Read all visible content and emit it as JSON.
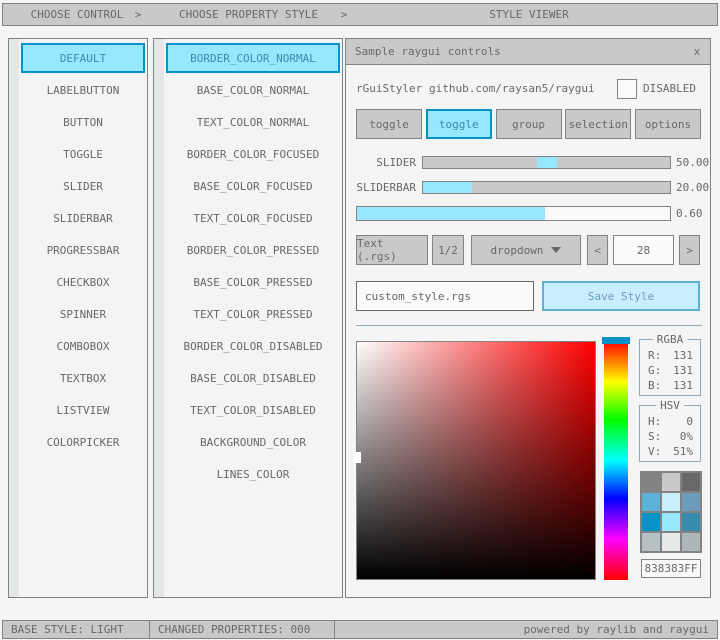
{
  "breadcrumb": {
    "step1": "CHOOSE CONTROL",
    "step2": "CHOOSE PROPERTY STYLE",
    "step3": "STYLE VIEWER",
    "chevron": ">"
  },
  "controls_list": {
    "selected": "DEFAULT",
    "items": [
      "DEFAULT",
      "LABELBUTTON",
      "BUTTON",
      "TOGGLE",
      "SLIDER",
      "SLIDERBAR",
      "PROGRESSBAR",
      "CHECKBOX",
      "SPINNER",
      "COMBOBOX",
      "TEXTBOX",
      "LISTVIEW",
      "COLORPICKER"
    ]
  },
  "properties_list": {
    "selected": "BORDER_COLOR_NORMAL",
    "items": [
      "BORDER_COLOR_NORMAL",
      "BASE_COLOR_NORMAL",
      "TEXT_COLOR_NORMAL",
      "BORDER_COLOR_FOCUSED",
      "BASE_COLOR_FOCUSED",
      "TEXT_COLOR_FOCUSED",
      "BORDER_COLOR_PRESSED",
      "BASE_COLOR_PRESSED",
      "TEXT_COLOR_PRESSED",
      "BORDER_COLOR_DISABLED",
      "BASE_COLOR_DISABLED",
      "TEXT_COLOR_DISABLED",
      "BACKGROUND_COLOR",
      "LINES_COLOR"
    ]
  },
  "window": {
    "title": "Sample raygui controls",
    "close_label": "x",
    "app_name": "rGuiStyler",
    "repo_url": "github.com/raysan5/raygui",
    "disabled_label": "DISABLED",
    "toggles": [
      "toggle",
      "toggle",
      "group",
      "selection",
      "options"
    ],
    "toggles_selected_index": 1,
    "slider": {
      "label": "SLIDER",
      "value": "50.00",
      "percent": 50
    },
    "sliderbar": {
      "label": "SLIDERBAR",
      "value": "20.00",
      "percent": 20
    },
    "progressbar": {
      "value": "0.60",
      "percent": 60
    },
    "controls_row": {
      "text_button": "Text (.rgs)",
      "half_button": "1/2",
      "dropdown_label": "dropdown",
      "spinner_decrease": "<",
      "spinner_value": "28",
      "spinner_increase": ">"
    },
    "file_input": "custom_style.rgs",
    "save_button": "Save Style",
    "color_panel": {
      "rgba": {
        "title": "RGBA",
        "rows": [
          {
            "label": "R:",
            "value": "131"
          },
          {
            "label": "G:",
            "value": "131"
          },
          {
            "label": "B:",
            "value": "131"
          }
        ]
      },
      "hsv": {
        "title": "HSV",
        "rows": [
          {
            "label": "H:",
            "value": "0"
          },
          {
            "label": "S:",
            "value": "0%"
          },
          {
            "label": "V:",
            "value": "51%"
          }
        ]
      },
      "hex_value": "838383FF",
      "swatches": [
        "#838383",
        "#c9c9c9",
        "#686868",
        "#5bb2d9",
        "#c9effe",
        "#6c9bbc",
        "#0492c7",
        "#97e8ff",
        "#368baf",
        "#b5c1c2",
        "#e6e9e9",
        "#aeb7b7"
      ]
    }
  },
  "status_bar": {
    "base_style": "BASE STYLE: LIGHT",
    "changed_properties": "CHANGED PROPERTIES: 000",
    "powered_by": "powered by raylib and raygui"
  },
  "colors": {
    "accent_border": "#0492c7",
    "accent_base": "#97e8ff",
    "accent_text": "#368baf",
    "focused_border": "#5bb2d9",
    "focused_base": "#c9effe",
    "focused_text": "#6c9bbc",
    "hue_handle": "#0492c7",
    "line_color": "#90abb5"
  }
}
